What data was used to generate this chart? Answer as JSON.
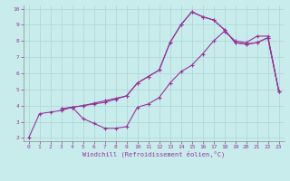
{
  "xlabel": "Windchill (Refroidissement éolien,°C)",
  "xlim": [
    -0.5,
    23.5
  ],
  "ylim": [
    1.8,
    10.2
  ],
  "xticks": [
    0,
    1,
    2,
    3,
    4,
    5,
    6,
    7,
    8,
    9,
    10,
    11,
    12,
    13,
    14,
    15,
    16,
    17,
    18,
    19,
    20,
    21,
    22,
    23
  ],
  "yticks": [
    2,
    3,
    4,
    5,
    6,
    7,
    8,
    9,
    10
  ],
  "bg_color": "#c8ecec",
  "grid_color": "#b0d8d8",
  "line_color": "#993399",
  "line1_x": [
    0,
    1,
    2,
    3,
    4,
    5,
    6,
    7,
    8,
    9,
    10,
    11,
    12,
    13,
    14,
    15,
    16,
    17,
    18,
    19,
    20,
    21,
    22,
    23
  ],
  "line1_y": [
    2.0,
    3.5,
    3.6,
    3.7,
    3.9,
    4.0,
    4.1,
    4.2,
    4.4,
    4.6,
    5.4,
    5.8,
    6.2,
    7.9,
    9.0,
    9.8,
    9.5,
    9.3,
    8.7,
    7.9,
    7.8,
    7.9,
    8.2,
    4.9
  ],
  "line2_x": [
    3,
    4,
    5,
    6,
    7,
    8,
    9,
    10,
    11,
    12,
    13,
    14,
    15,
    16,
    17,
    18,
    19,
    20,
    21,
    22,
    23
  ],
  "line2_y": [
    3.8,
    3.9,
    3.2,
    2.9,
    2.6,
    2.6,
    2.7,
    3.9,
    4.1,
    4.5,
    5.4,
    6.1,
    6.5,
    7.2,
    8.0,
    8.6,
    8.0,
    7.9,
    8.3,
    8.3,
    4.9
  ],
  "line3_x": [
    3,
    4,
    5,
    6,
    7,
    8,
    9,
    10,
    11,
    12,
    13,
    14,
    15,
    16,
    17,
    18,
    19,
    20,
    21,
    22,
    23
  ],
  "line3_y": [
    3.8,
    3.9,
    4.0,
    4.15,
    4.3,
    4.45,
    4.6,
    5.4,
    5.8,
    6.2,
    7.9,
    9.0,
    9.8,
    9.5,
    9.3,
    8.7,
    7.9,
    7.8,
    7.9,
    8.2,
    4.9
  ]
}
